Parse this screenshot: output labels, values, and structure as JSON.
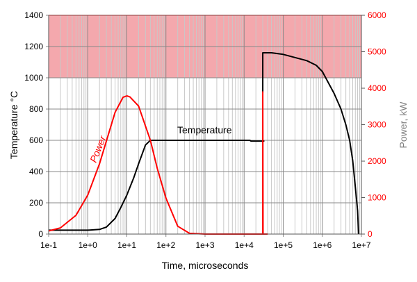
{
  "chart_data": {
    "type": "line",
    "title": "",
    "xlabel": "Time, microseconds",
    "ylabel": "Temperature °C",
    "y2label": "Power, kW",
    "xscale": "log",
    "xlim": [
      0.1,
      10000000
    ],
    "ylim": [
      0,
      1400
    ],
    "y2lim": [
      0,
      6000
    ],
    "xticks": [
      "1e-1",
      "1e+0",
      "1e+1",
      "1e+2",
      "1e+3",
      "1e+4",
      "1e+5",
      "1e+6",
      "1e+7"
    ],
    "yticks": [
      "0",
      "200",
      "400",
      "600",
      "800",
      "1000",
      "1200",
      "1400"
    ],
    "y2ticks": [
      "0",
      "1000",
      "2000",
      "3000",
      "4000",
      "5000",
      "6000"
    ],
    "grid": true,
    "shaded_band": {
      "axis": "y",
      "from": 1000,
      "to": 1400,
      "color": "#f4a8ad"
    },
    "colors": {
      "temperature": "#000000",
      "power": "#ff0000",
      "y2_tick_labels": "#ff0000",
      "y2_label": "#808080"
    },
    "series": [
      {
        "name": "Temperature",
        "axis": "left",
        "color": "#000000",
        "segments": [
          [
            [
              0.1,
              25
            ],
            [
              1,
              25
            ],
            [
              2,
              30
            ],
            [
              3,
              45
            ],
            [
              5,
              100
            ],
            [
              7,
              170
            ],
            [
              10,
              250
            ],
            [
              15,
              360
            ],
            [
              20,
              450
            ],
            [
              30,
              570
            ],
            [
              40,
              600
            ],
            [
              100,
              600
            ],
            [
              1000,
              600
            ],
            [
              14000,
              600
            ],
            [
              15000,
              595
            ],
            [
              33000,
              595
            ]
          ],
          [
            [
              30000,
              905
            ],
            [
              30000,
              1160
            ],
            [
              50000,
              1160
            ],
            [
              100000,
              1150
            ],
            [
              200000,
              1130
            ],
            [
              400000,
              1110
            ],
            [
              700000,
              1080
            ],
            [
              1000000,
              1040
            ],
            [
              2000000,
              900
            ],
            [
              3000000,
              800
            ],
            [
              4000000,
              700
            ],
            [
              5000000,
              600
            ],
            [
              6000000,
              470
            ],
            [
              7000000,
              300
            ],
            [
              8000000,
              150
            ],
            [
              8500000,
              0
            ]
          ]
        ]
      },
      {
        "name": "Power",
        "axis": "right",
        "color": "#ff0000",
        "segments": [
          [
            [
              0.1,
              86
            ],
            [
              0.2,
              170
            ],
            [
              0.5,
              515
            ],
            [
              1,
              1070
            ],
            [
              2,
              1930
            ],
            [
              5,
              3340
            ],
            [
              8,
              3750
            ],
            [
              10,
              3790
            ],
            [
              12,
              3760
            ],
            [
              20,
              3510
            ],
            [
              40,
              2570
            ],
            [
              60,
              1800
            ],
            [
              100,
              985
            ],
            [
              200,
              215
            ],
            [
              400,
              21
            ],
            [
              1000,
              0
            ],
            [
              30000,
              0
            ],
            [
              30000,
              3900
            ],
            [
              30500,
              0
            ],
            [
              40000,
              0
            ]
          ]
        ]
      }
    ]
  }
}
